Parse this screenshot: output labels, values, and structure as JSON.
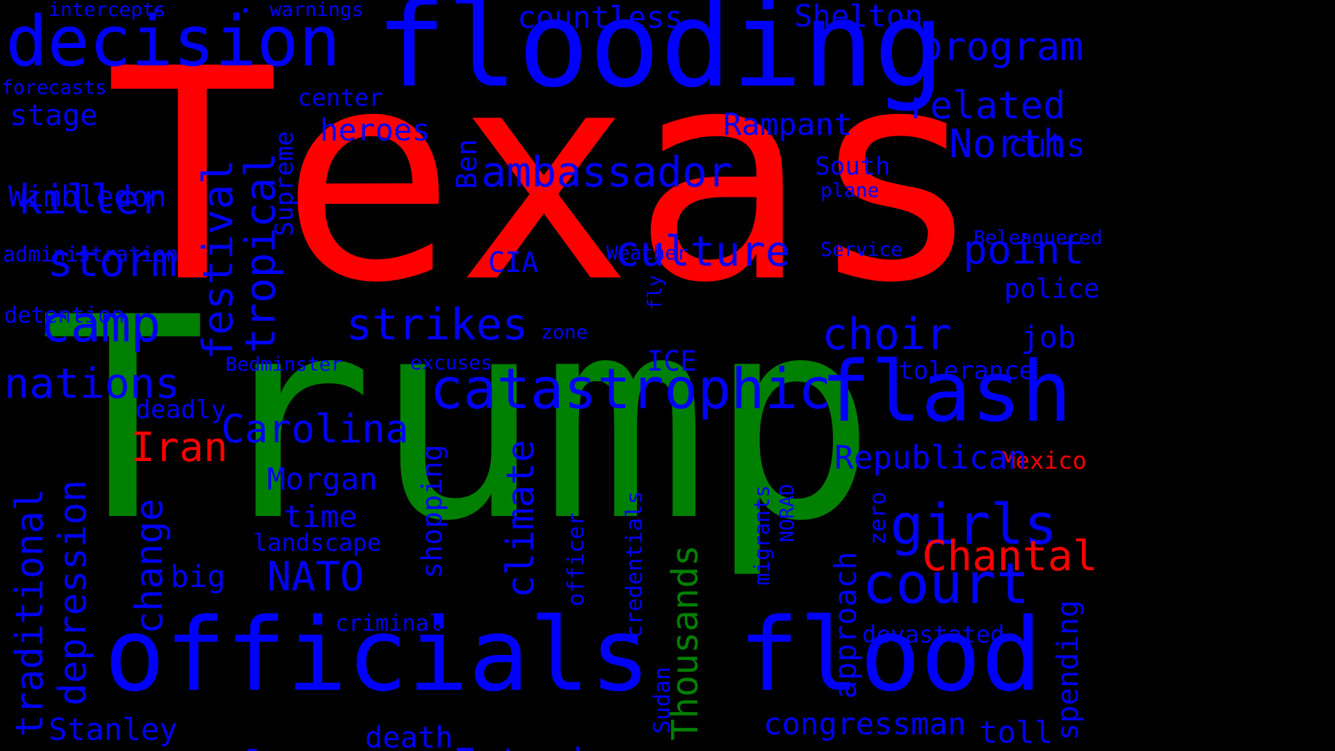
{
  "colors": {
    "background": "#000000",
    "primary": "#0000ff",
    "highlight_red": "#ff0000",
    "highlight_green": "#008000"
  },
  "words": [
    "Texas",
    "Trump",
    "flooding",
    "officials",
    "flood",
    "decision",
    "flash",
    "catastrophic",
    "ambassador",
    "court",
    "girls",
    "program",
    "camp",
    "killer",
    "storm",
    "nations",
    "strikes",
    "culture",
    "choir",
    "point",
    "related",
    "North",
    "Carolina",
    "Estonias",
    "nuclear",
    "festival",
    "tropical",
    "traditional",
    "depression",
    "change",
    "climate",
    "Thousands",
    "Chantal",
    "Iran",
    "Mexico",
    "NATO",
    "Morgan",
    "time",
    "Stanley",
    "death",
    "congressman",
    "toll",
    "Republican",
    "approach",
    "spending",
    "Sheltton",
    "countless",
    "Rampant",
    "heroes",
    "stage",
    "Wimbledon",
    "administration",
    "detention",
    "forecasts",
    "intercepts",
    "warnings",
    "center",
    "Supreme",
    "Ben",
    "South",
    "plane",
    "Beleaguered",
    "Service",
    "Weather",
    "CIA",
    "police",
    "job",
    "tolerance",
    "devastated",
    "zero",
    "NORAD",
    "migrants",
    "credentials",
    "officer",
    "shopping",
    "landscape",
    "criminal",
    "excuses",
    "Bedminster",
    "ICE",
    "zone",
    "fly",
    "deadly",
    "big",
    "Sudan",
    "cuts"
  ]
}
